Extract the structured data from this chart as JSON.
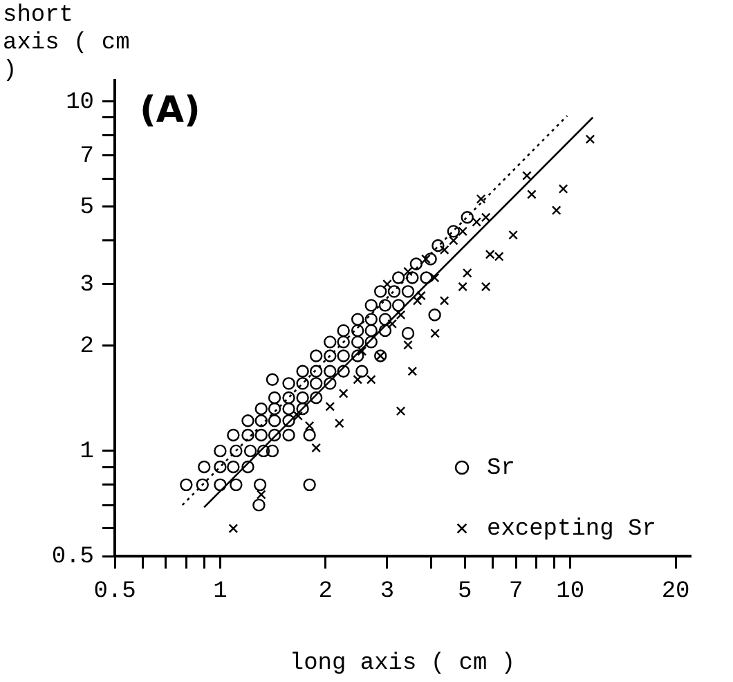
{
  "chart_data": {
    "type": "scatter",
    "xlabel": "long axis ( cm )",
    "ylabel": "short axis ( cm )",
    "annotations": [
      "(A)"
    ],
    "log": "xy",
    "grid": false,
    "legend": "bottom right",
    "xlim": [
      0.5,
      22
    ],
    "ylim": [
      0.5,
      11.5
    ],
    "xticks": [
      0.5,
      {
        "value": 0.6,
        "label": null
      },
      {
        "value": 0.7,
        "label": null
      },
      {
        "value": 0.8,
        "label": null
      },
      {
        "value": 0.9,
        "label": null
      },
      1,
      2,
      3,
      {
        "value": 4,
        "label": null
      },
      5,
      {
        "value": 6,
        "label": null
      },
      7,
      {
        "value": 8,
        "label": null
      },
      {
        "value": 9,
        "label": null
      },
      10,
      20
    ],
    "yticks": [
      0.5,
      {
        "value": 0.6,
        "label": null
      },
      {
        "value": 0.7,
        "label": null
      },
      {
        "value": 0.8,
        "label": null
      },
      {
        "value": 0.9,
        "label": null
      },
      1,
      2,
      3,
      {
        "value": 4,
        "label": null
      },
      5,
      {
        "value": 6,
        "label": null
      },
      7,
      {
        "value": 8,
        "label": null
      },
      {
        "value": 9,
        "label": null
      },
      10
    ],
    "series": [
      {
        "name": "Sr",
        "color": "#000000",
        "marker": "circle",
        "x": [
          0.8,
          0.89,
          1.0,
          1.11,
          1.3,
          1.8,
          0.9,
          1.0,
          1.09,
          1.2,
          1.29,
          1.0,
          1.11,
          1.22,
          1.33,
          1.41,
          1.09,
          1.2,
          1.31,
          1.43,
          1.57,
          1.8,
          1.2,
          1.31,
          1.43,
          1.57,
          1.31,
          1.43,
          1.57,
          1.72,
          1.43,
          1.57,
          1.72,
          1.88,
          1.57,
          1.72,
          1.88,
          2.06,
          1.41,
          1.72,
          1.88,
          2.06,
          2.25,
          1.88,
          2.06,
          2.25,
          2.47,
          2.06,
          2.25,
          2.47,
          2.7,
          2.25,
          2.47,
          2.7,
          2.96,
          2.47,
          2.7,
          2.96,
          2.7,
          2.96,
          3.23,
          2.87,
          3.14,
          3.44,
          3.23,
          3.54,
          3.88,
          3.63,
          3.99,
          4.19,
          4.64,
          5.08,
          2.54,
          2.87,
          3.44,
          4.1
        ],
        "values": [
          0.8,
          0.8,
          0.8,
          0.8,
          0.8,
          0.8,
          0.9,
          0.9,
          0.9,
          0.9,
          0.7,
          1.0,
          1.0,
          1.0,
          1.0,
          1.0,
          1.11,
          1.11,
          1.11,
          1.11,
          1.11,
          1.11,
          1.22,
          1.22,
          1.22,
          1.22,
          1.32,
          1.32,
          1.32,
          1.32,
          1.42,
          1.42,
          1.42,
          1.42,
          1.56,
          1.56,
          1.56,
          1.56,
          1.6,
          1.69,
          1.69,
          1.69,
          1.69,
          1.87,
          1.87,
          1.87,
          1.87,
          2.05,
          2.05,
          2.05,
          2.05,
          2.21,
          2.21,
          2.21,
          2.21,
          2.38,
          2.38,
          2.38,
          2.61,
          2.61,
          2.61,
          2.86,
          2.86,
          2.86,
          3.13,
          3.13,
          3.13,
          3.43,
          3.54,
          3.87,
          4.25,
          4.66,
          1.69,
          1.87,
          2.17,
          2.45
        ]
      },
      {
        "name": "excepting Sr",
        "color": "#000000",
        "marker": "cross",
        "x": [
          1.09,
          1.88,
          2.19,
          3.28,
          3.54,
          2.7,
          2.87,
          3.44,
          4.11,
          4.37,
          4.93,
          5.74,
          5.08,
          5.9,
          6.26,
          5.74,
          5.56,
          6.87,
          7.52,
          7.76,
          9.55,
          9.13,
          11.4,
          4.1,
          4.64,
          5.4,
          3.75,
          3.1,
          2.54,
          3.28,
          3.66,
          3.87,
          4.37,
          4.93,
          3.0,
          3.44,
          2.25,
          2.06,
          2.47,
          1.67,
          1.8,
          1.31
        ],
        "values": [
          0.6,
          1.02,
          1.2,
          1.3,
          1.69,
          1.6,
          1.87,
          2.01,
          2.17,
          2.69,
          2.95,
          2.95,
          3.23,
          3.65,
          3.6,
          4.66,
          5.26,
          4.15,
          6.13,
          5.42,
          5.62,
          4.88,
          7.8,
          3.13,
          4.0,
          4.52,
          2.78,
          2.31,
          1.93,
          2.45,
          2.69,
          3.54,
          3.76,
          4.25,
          3.0,
          3.26,
          1.46,
          1.34,
          1.6,
          1.26,
          1.18,
          0.75
        ]
      },
      {
        "type": "line",
        "color": "#000000",
        "line_style": "dotted",
        "x": [
          0.78,
          9.8
        ],
        "values": [
          0.7,
          9.1
        ]
      },
      {
        "type": "line",
        "color": "#000000",
        "line_style": "solid",
        "x": [
          0.9,
          11.6
        ],
        "values": [
          0.69,
          9.0
        ]
      }
    ]
  }
}
